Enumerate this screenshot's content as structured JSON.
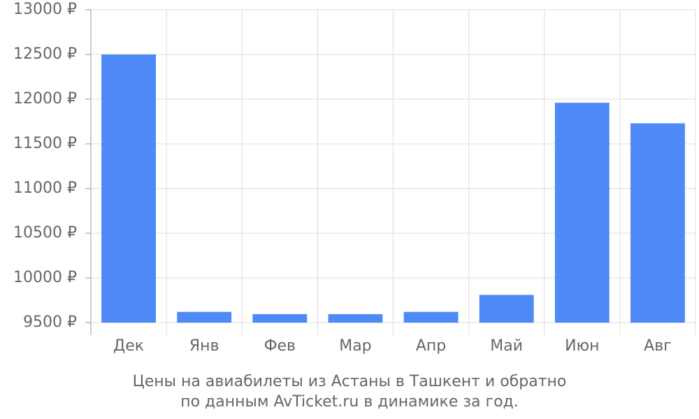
{
  "chart_data": {
    "type": "bar",
    "caption": [
      "Цены на авиабилеты из Астаны в Ташкент и обратно",
      "по данным AvTicket.ru в динамике за год."
    ],
    "categories": [
      "Дек",
      "Янв",
      "Фев",
      "Мар",
      "Апр",
      "Май",
      "Июн",
      "Авг"
    ],
    "values": [
      12500,
      9620,
      9595,
      9595,
      9620,
      9810,
      11960,
      11730
    ],
    "color": "#4d8af8",
    "ylim": [
      9500,
      13000
    ],
    "yticks": [
      {
        "value": 9500,
        "label": "9500 ₽"
      },
      {
        "value": 10000,
        "label": "10000 ₽"
      },
      {
        "value": 10500,
        "label": "10500 ₽"
      },
      {
        "value": 11000,
        "label": "11000 ₽"
      },
      {
        "value": 11500,
        "label": "11500 ₽"
      },
      {
        "value": 12000,
        "label": "12000 ₽"
      },
      {
        "value": 12500,
        "label": "12500 ₽"
      },
      {
        "value": 13000,
        "label": "13000 ₽"
      }
    ],
    "grid": true
  }
}
